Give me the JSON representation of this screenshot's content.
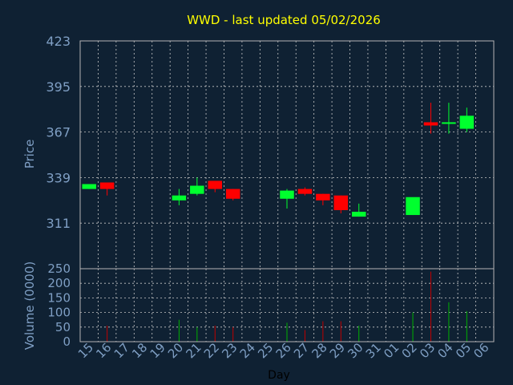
{
  "colors": {
    "background": "#0f2133",
    "frame": "#b4b4b4",
    "grid": "#c8c8c8",
    "up": "#00ff2e",
    "down": "#ff0000",
    "up_volume": "#00b000",
    "down_volume": "#c00000",
    "title": "#ffff00",
    "labels": "#7f9fc4"
  },
  "chart_data": [
    {
      "type": "candlestick",
      "title": "WWD - last updated 05/02/2026",
      "ylabel": "Price",
      "ylim": [
        283,
        423
      ],
      "yticks": [
        423,
        395,
        367,
        339,
        311
      ],
      "grid": true,
      "categories": [
        "15",
        "16",
        "17",
        "18",
        "19",
        "20",
        "21",
        "22",
        "23",
        "24",
        "25",
        "26",
        "27",
        "28",
        "29",
        "30",
        "31",
        "01",
        "02",
        "03",
        "04",
        "05",
        "06"
      ],
      "candles": [
        {
          "day": "15",
          "open": 332,
          "high": 335,
          "low": 332,
          "close": 335
        },
        {
          "day": "16",
          "open": 336,
          "high": 336,
          "low": 328,
          "close": 332
        },
        {
          "day": "20",
          "open": 325,
          "high": 332,
          "low": 322,
          "close": 328
        },
        {
          "day": "21",
          "open": 329,
          "high": 339,
          "low": 328,
          "close": 334
        },
        {
          "day": "22",
          "open": 337,
          "high": 337,
          "low": 330,
          "close": 332
        },
        {
          "day": "23",
          "open": 332,
          "high": 332,
          "low": 325,
          "close": 326
        },
        {
          "day": "26",
          "open": 326,
          "high": 332,
          "low": 320,
          "close": 331
        },
        {
          "day": "27",
          "open": 332,
          "high": 333,
          "low": 328,
          "close": 329
        },
        {
          "day": "28",
          "open": 329,
          "high": 329,
          "low": 322,
          "close": 325
        },
        {
          "day": "29",
          "open": 328,
          "high": 328,
          "low": 317,
          "close": 319
        },
        {
          "day": "30",
          "open": 315,
          "high": 323,
          "low": 315,
          "close": 318
        },
        {
          "day": "02",
          "open": 316,
          "high": 326,
          "low": 316,
          "close": 327
        },
        {
          "day": "03",
          "open": 373,
          "high": 385,
          "low": 366,
          "close": 371
        },
        {
          "day": "04",
          "open": 372,
          "high": 385,
          "low": 366,
          "close": 373
        },
        {
          "day": "05",
          "open": 369,
          "high": 382,
          "low": 367,
          "close": 377
        }
      ]
    },
    {
      "type": "bar",
      "ylabel": "Volume (0000)",
      "ylim": [
        0,
        250
      ],
      "yticks": [
        0,
        50,
        100,
        150,
        200,
        250
      ],
      "xlabel": "Day",
      "categories": [
        "15",
        "16",
        "17",
        "18",
        "19",
        "20",
        "21",
        "22",
        "23",
        "24",
        "25",
        "26",
        "27",
        "28",
        "29",
        "30",
        "31",
        "01",
        "02",
        "03",
        "04",
        "05",
        "06"
      ],
      "volumes": [
        {
          "day": "16",
          "value": 55,
          "direction": "down"
        },
        {
          "day": "20",
          "value": 75,
          "direction": "up"
        },
        {
          "day": "21",
          "value": 50,
          "direction": "up"
        },
        {
          "day": "22",
          "value": 55,
          "direction": "down"
        },
        {
          "day": "23",
          "value": 50,
          "direction": "down"
        },
        {
          "day": "26",
          "value": 65,
          "direction": "up"
        },
        {
          "day": "27",
          "value": 40,
          "direction": "down"
        },
        {
          "day": "28",
          "value": 70,
          "direction": "down"
        },
        {
          "day": "29",
          "value": 70,
          "direction": "down"
        },
        {
          "day": "30",
          "value": 55,
          "direction": "up"
        },
        {
          "day": "02",
          "value": 100,
          "direction": "up"
        },
        {
          "day": "03",
          "value": 240,
          "direction": "down"
        },
        {
          "day": "04",
          "value": 135,
          "direction": "up"
        },
        {
          "day": "05",
          "value": 105,
          "direction": "up"
        }
      ]
    }
  ]
}
